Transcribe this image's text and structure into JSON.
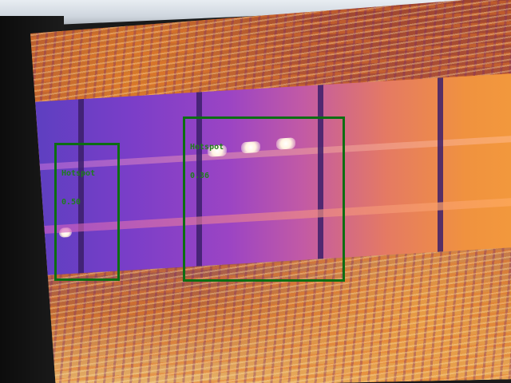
{
  "detections": [
    {
      "label": "Hotspot",
      "score": "0.50"
    },
    {
      "label": "Hotspot",
      "score": "0.36"
    }
  ],
  "colors": {
    "box": "#0c6e12",
    "label_text": "#1f7d1c"
  }
}
